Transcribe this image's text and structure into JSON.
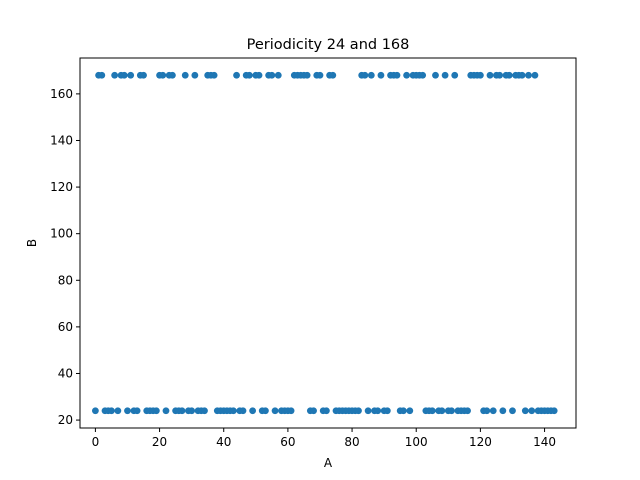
{
  "chart_data": {
    "type": "scatter",
    "title": "Periodicity 24 and 168",
    "xlabel": "A",
    "ylabel": "B",
    "xlim": [
      -4.8,
      149.8
    ],
    "ylim": [
      16.6,
      175.4
    ],
    "xticks": [
      0,
      20,
      40,
      60,
      80,
      100,
      120,
      140
    ],
    "yticks": [
      20,
      40,
      60,
      80,
      100,
      120,
      140,
      160
    ],
    "grid": false,
    "marker_color": "#1f77b4",
    "series": [
      {
        "x": [
          1,
          2,
          6,
          8,
          9,
          11,
          14,
          15,
          20,
          21,
          23,
          24,
          28,
          31,
          35,
          36,
          37,
          44,
          47,
          48,
          50,
          51,
          54,
          55,
          57,
          62,
          63,
          64,
          65,
          66,
          69,
          70,
          73,
          74,
          83,
          84,
          86,
          89,
          92,
          93,
          94,
          97,
          99,
          100,
          101,
          102,
          106,
          109,
          112,
          117,
          118,
          119,
          120,
          123,
          125,
          126,
          128,
          129,
          131,
          132,
          133,
          135,
          137
        ],
        "y": [
          168,
          168,
          168,
          168,
          168,
          168,
          168,
          168,
          168,
          168,
          168,
          168,
          168,
          168,
          168,
          168,
          168,
          168,
          168,
          168,
          168,
          168,
          168,
          168,
          168,
          168,
          168,
          168,
          168,
          168,
          168,
          168,
          168,
          168,
          168,
          168,
          168,
          168,
          168,
          168,
          168,
          168,
          168,
          168,
          168,
          168,
          168,
          168,
          168,
          168,
          168,
          168,
          168,
          168,
          168,
          168,
          168,
          168,
          168,
          168,
          168,
          168,
          168
        ]
      },
      {
        "x": [
          0,
          3,
          4,
          5,
          7,
          10,
          12,
          13,
          16,
          17,
          18,
          19,
          22,
          25,
          26,
          27,
          29,
          30,
          32,
          33,
          34,
          38,
          39,
          40,
          41,
          42,
          43,
          45,
          46,
          49,
          52,
          53,
          56,
          58,
          59,
          60,
          61,
          67,
          68,
          71,
          72,
          75,
          76,
          77,
          78,
          79,
          80,
          81,
          82,
          85,
          87,
          88,
          90,
          91,
          95,
          96,
          98,
          103,
          104,
          105,
          107,
          108,
          110,
          111,
          113,
          114,
          115,
          116,
          121,
          122,
          124,
          127,
          130,
          134,
          136,
          138,
          139,
          140,
          141,
          142,
          143
        ],
        "y": [
          24,
          24,
          24,
          24,
          24,
          24,
          24,
          24,
          24,
          24,
          24,
          24,
          24,
          24,
          24,
          24,
          24,
          24,
          24,
          24,
          24,
          24,
          24,
          24,
          24,
          24,
          24,
          24,
          24,
          24,
          24,
          24,
          24,
          24,
          24,
          24,
          24,
          24,
          24,
          24,
          24,
          24,
          24,
          24,
          24,
          24,
          24,
          24,
          24,
          24,
          24,
          24,
          24,
          24,
          24,
          24,
          24,
          24,
          24,
          24,
          24,
          24,
          24,
          24,
          24,
          24,
          24,
          24,
          24,
          24,
          24,
          24,
          24,
          24,
          24,
          24,
          24,
          24,
          24,
          24,
          24
        ]
      }
    ]
  }
}
